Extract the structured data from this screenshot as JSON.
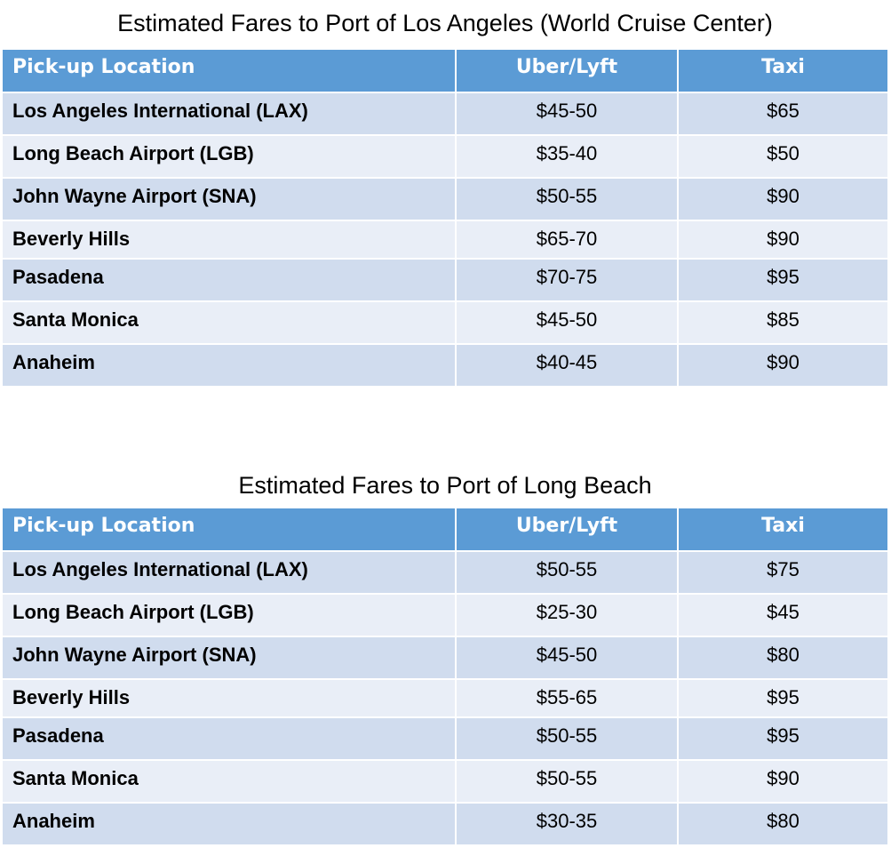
{
  "tables": [
    {
      "title": "Estimated Fares to Port of Los Angeles (World Cruise Center)",
      "headers": [
        "Pick-up Location",
        "Uber/Lyft",
        "Taxi"
      ],
      "rows": [
        {
          "location": "Los Angeles International (LAX)",
          "uber_lyft": "$45-50",
          "taxi": "$65"
        },
        {
          "location": "Long Beach Airport (LGB)",
          "uber_lyft": "$35-40",
          "taxi": "$50"
        },
        {
          "location": "John Wayne Airport (SNA)",
          "uber_lyft": "$50-55",
          "taxi": "$90"
        },
        {
          "location": "Beverly Hills",
          "uber_lyft": "$65-70",
          "taxi": "$90"
        },
        {
          "location": "Pasadena",
          "uber_lyft": "$70-75",
          "taxi": "$95"
        },
        {
          "location": "Santa Monica",
          "uber_lyft": "$45-50",
          "taxi": "$85"
        },
        {
          "location": "Anaheim",
          "uber_lyft": "$40-45",
          "taxi": "$90"
        }
      ]
    },
    {
      "title": "Estimated Fares to Port of Long Beach",
      "headers": [
        "Pick-up Location",
        "Uber/Lyft",
        "Taxi"
      ],
      "rows": [
        {
          "location": "Los Angeles International (LAX)",
          "uber_lyft": "$50-55",
          "taxi": "$75"
        },
        {
          "location": "Long Beach Airport (LGB)",
          "uber_lyft": "$25-30",
          "taxi": "$45"
        },
        {
          "location": "John Wayne Airport (SNA)",
          "uber_lyft": "$45-50",
          "taxi": "$80"
        },
        {
          "location": "Beverly Hills",
          "uber_lyft": "$55-65",
          "taxi": "$95"
        },
        {
          "location": "Pasadena",
          "uber_lyft": "$50-55",
          "taxi": "$95"
        },
        {
          "location": "Santa Monica",
          "uber_lyft": "$50-55",
          "taxi": "$90"
        },
        {
          "location": "Anaheim",
          "uber_lyft": "$30-35",
          "taxi": "$80"
        }
      ]
    }
  ],
  "colors": {
    "header_bg": "#5b9bd5",
    "row_dark": "#d0dcee",
    "row_light": "#e9eef7"
  }
}
